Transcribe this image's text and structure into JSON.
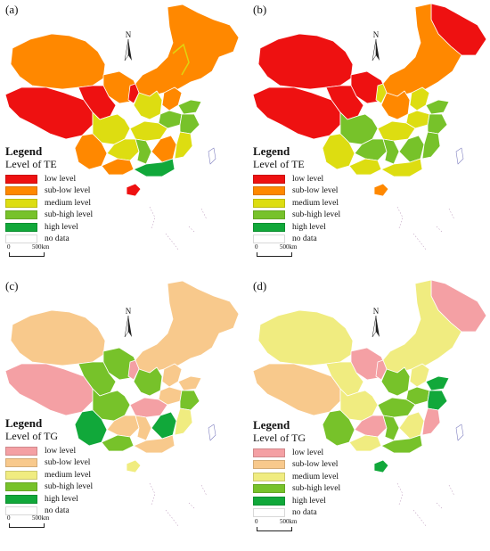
{
  "north_label": "N",
  "colors": {
    "te": {
      "low": "#ee1111",
      "sublow": "#ff8800",
      "medium": "#dddd11",
      "subhigh": "#77c22a",
      "high": "#11a83a",
      "nodata": "#ffffff"
    },
    "tg": {
      "low": "#f4a0a4",
      "sublow": "#f8c98c",
      "medium": "#f0ec80",
      "subhigh": "#77c22a",
      "high": "#11a83a",
      "nodata": "#ffffff"
    }
  },
  "scale": {
    "zero": "0",
    "distance": "500km"
  },
  "panels": [
    {
      "label": "(a)",
      "legend_title": "Legend",
      "legend_subtitle": "Level of  TE",
      "items": [
        "low level",
        "sub-low level",
        "medium level",
        "sub-high level",
        "high level",
        "no data"
      ]
    },
    {
      "label": "(b)",
      "legend_title": "Legend",
      "legend_subtitle": "Level of  TE",
      "items": [
        "low level",
        "sub-low level",
        "medium level",
        "sub-high level",
        "high level",
        "no data"
      ]
    },
    {
      "label": "(c)",
      "legend_title": "Legend",
      "legend_subtitle": "Level of  TG",
      "items": [
        "low level",
        "sub-low level",
        "medium level",
        "sub-high level",
        "high level",
        "no data"
      ]
    },
    {
      "label": "(d)",
      "legend_title": "Legend",
      "legend_subtitle": "Level of  TG",
      "items": [
        "low level",
        "sub-low level",
        "medium level",
        "sub-high level",
        "high level",
        "no data"
      ]
    }
  ]
}
